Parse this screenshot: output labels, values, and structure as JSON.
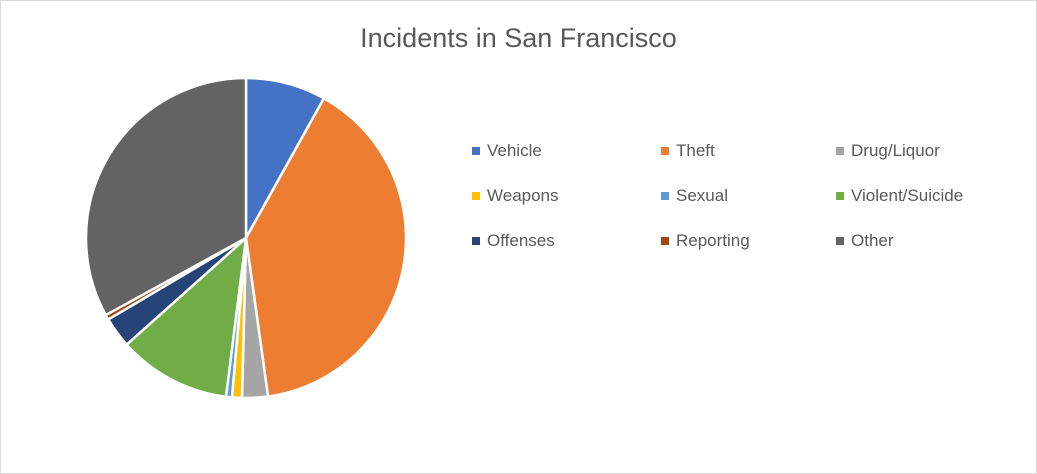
{
  "chart_data": {
    "type": "pie",
    "title": "Incidents in San Francisco",
    "categories": [
      "Vehicle",
      "Theft",
      "Drug/Liquor",
      "Weapons",
      "Sexual",
      "Violent/Suicide",
      "Offenses",
      "Reporting",
      "Other"
    ],
    "values": [
      8.1,
      39.7,
      2.6,
      1.0,
      0.6,
      11.4,
      3.1,
      0.5,
      33.0
    ],
    "colors": [
      "#4472c4",
      "#ed7d31",
      "#a5a5a5",
      "#ffc000",
      "#5b9bd5",
      "#70ad47",
      "#264478",
      "#9e480e",
      "#636363"
    ],
    "legend_position": "right",
    "start_angle": "12 o'clock",
    "direction": "clockwise"
  }
}
